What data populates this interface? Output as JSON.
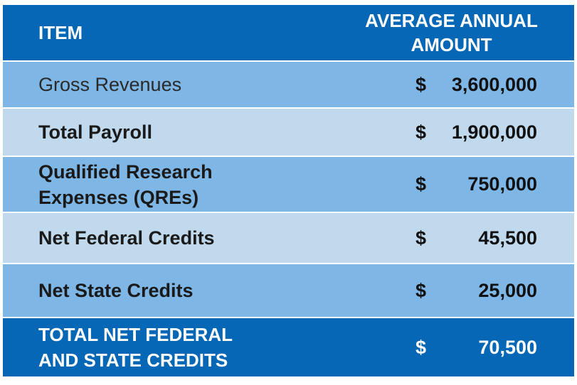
{
  "table": {
    "header": {
      "item": "ITEM",
      "amount": "AVERAGE ANNUAL\nAMOUNT"
    },
    "rows": [
      {
        "item": "Gross Revenues",
        "currency": "$",
        "amount": "3,600,000"
      },
      {
        "item": "Total Payroll",
        "currency": "$",
        "amount": "1,900,000"
      },
      {
        "item": "Qualified Research Expenses (QREs)",
        "currency": "$",
        "amount": "750,000"
      },
      {
        "item": "Net Federal Credits",
        "currency": "$",
        "amount": "45,500"
      },
      {
        "item": "Net State Credits",
        "currency": "$",
        "amount": "25,000"
      }
    ],
    "total": {
      "item": "TOTAL NET FEDERAL\nAND STATE CREDITS",
      "currency": "$",
      "amount": "70,500"
    }
  },
  "colors": {
    "header_bg": "#0567b5",
    "row_dark": "#7eb7e5",
    "row_light": "#c0d9ec",
    "header_text": "#ffffff"
  }
}
